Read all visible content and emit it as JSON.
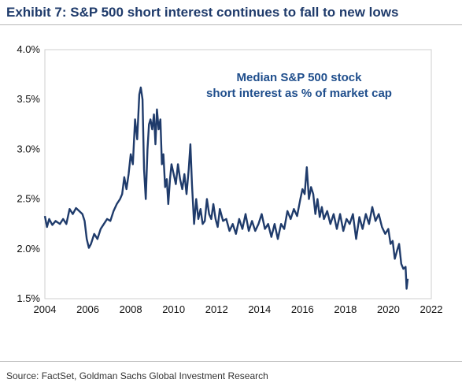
{
  "header": {
    "title": "Exhibit 7: S&P 500 short interest continues to fall to new lows"
  },
  "footer": {
    "source": "Source: FactSet, Goldman Sachs Global Investment Research"
  },
  "chart_data": {
    "type": "line",
    "title": "",
    "xlabel": "",
    "ylabel": "",
    "annotation": [
      "Median S&P 500 stock",
      "short interest as % of market cap"
    ],
    "xlim": [
      2004,
      2022
    ],
    "ylim": [
      1.5,
      4.0
    ],
    "x_ticks": [
      2004,
      2006,
      2008,
      2010,
      2012,
      2014,
      2016,
      2018,
      2020,
      2022
    ],
    "x_tick_labels": [
      "2004",
      "2006",
      "2008",
      "2010",
      "2012",
      "2014",
      "2016",
      "2018",
      "2020",
      "2022"
    ],
    "y_ticks": [
      1.5,
      2.0,
      2.5,
      3.0,
      3.5,
      4.0
    ],
    "y_tick_labels": [
      "1.5%",
      "2.0%",
      "2.5%",
      "3.0%",
      "3.5%",
      "4.0%"
    ],
    "grid": false,
    "line_color": "#1f3b6b",
    "series": [
      {
        "x": [
          2004.0,
          2004.1,
          2004.2,
          2004.35,
          2004.5,
          2004.7,
          2004.85,
          2005.0,
          2005.15,
          2005.3,
          2005.45,
          2005.6,
          2005.75,
          2005.85,
          2005.95,
          2006.05,
          2006.15,
          2006.3,
          2006.45,
          2006.6,
          2006.75,
          2006.9,
          2007.05,
          2007.2,
          2007.35,
          2007.5,
          2007.6,
          2007.7,
          2007.8,
          2007.9,
          2008.0,
          2008.1,
          2008.2,
          2008.3,
          2008.4,
          2008.47,
          2008.55,
          2008.62,
          2008.7,
          2008.78,
          2008.85,
          2008.92,
          2009.0,
          2009.08,
          2009.15,
          2009.22,
          2009.3,
          2009.38,
          2009.45,
          2009.52,
          2009.6,
          2009.68,
          2009.75,
          2009.83,
          2009.9,
          2010.0,
          2010.1,
          2010.2,
          2010.3,
          2010.4,
          2010.5,
          2010.6,
          2010.7,
          2010.78,
          2010.85,
          2010.95,
          2011.05,
          2011.15,
          2011.25,
          2011.35,
          2011.45,
          2011.55,
          2011.65,
          2011.75,
          2011.85,
          2011.95,
          2012.05,
          2012.15,
          2012.3,
          2012.45,
          2012.6,
          2012.75,
          2012.9,
          2013.05,
          2013.2,
          2013.35,
          2013.5,
          2013.65,
          2013.8,
          2013.95,
          2014.1,
          2014.25,
          2014.4,
          2014.55,
          2014.7,
          2014.85,
          2015.0,
          2015.15,
          2015.3,
          2015.45,
          2015.6,
          2015.75,
          2015.9,
          2016.0,
          2016.1,
          2016.2,
          2016.3,
          2016.4,
          2016.5,
          2016.6,
          2016.7,
          2016.8,
          2016.9,
          2017.0,
          2017.15,
          2017.3,
          2017.45,
          2017.6,
          2017.75,
          2017.9,
          2018.05,
          2018.2,
          2018.35,
          2018.5,
          2018.65,
          2018.8,
          2018.95,
          2019.1,
          2019.25,
          2019.4,
          2019.55,
          2019.7,
          2019.85,
          2020.0,
          2020.1,
          2020.2,
          2020.3,
          2020.4,
          2020.5,
          2020.6,
          2020.7,
          2020.8,
          2020.85,
          2020.9
        ],
        "y": [
          2.33,
          2.22,
          2.3,
          2.24,
          2.28,
          2.25,
          2.3,
          2.25,
          2.4,
          2.35,
          2.41,
          2.38,
          2.35,
          2.28,
          2.1,
          2.01,
          2.05,
          2.15,
          2.1,
          2.2,
          2.25,
          2.3,
          2.28,
          2.38,
          2.45,
          2.5,
          2.55,
          2.72,
          2.6,
          2.75,
          2.95,
          2.85,
          3.3,
          3.1,
          3.55,
          3.62,
          3.5,
          2.8,
          2.5,
          3.0,
          3.25,
          3.3,
          3.2,
          3.35,
          3.05,
          3.4,
          3.2,
          3.3,
          2.85,
          2.95,
          2.62,
          2.7,
          2.45,
          2.7,
          2.85,
          2.75,
          2.65,
          2.85,
          2.7,
          2.6,
          2.75,
          2.55,
          2.8,
          3.05,
          2.65,
          2.25,
          2.5,
          2.3,
          2.4,
          2.25,
          2.28,
          2.5,
          2.35,
          2.3,
          2.45,
          2.3,
          2.22,
          2.4,
          2.28,
          2.3,
          2.18,
          2.25,
          2.15,
          2.3,
          2.2,
          2.35,
          2.18,
          2.28,
          2.18,
          2.25,
          2.35,
          2.2,
          2.25,
          2.12,
          2.25,
          2.1,
          2.25,
          2.2,
          2.38,
          2.3,
          2.4,
          2.33,
          2.5,
          2.6,
          2.55,
          2.82,
          2.5,
          2.62,
          2.55,
          2.35,
          2.5,
          2.32,
          2.42,
          2.3,
          2.38,
          2.25,
          2.35,
          2.2,
          2.35,
          2.18,
          2.3,
          2.25,
          2.35,
          2.1,
          2.32,
          2.2,
          2.35,
          2.25,
          2.42,
          2.28,
          2.35,
          2.22,
          2.15,
          2.2,
          2.05,
          2.08,
          1.9,
          1.98,
          2.05,
          1.85,
          1.8,
          1.82,
          1.6,
          1.7
        ]
      }
    ]
  }
}
